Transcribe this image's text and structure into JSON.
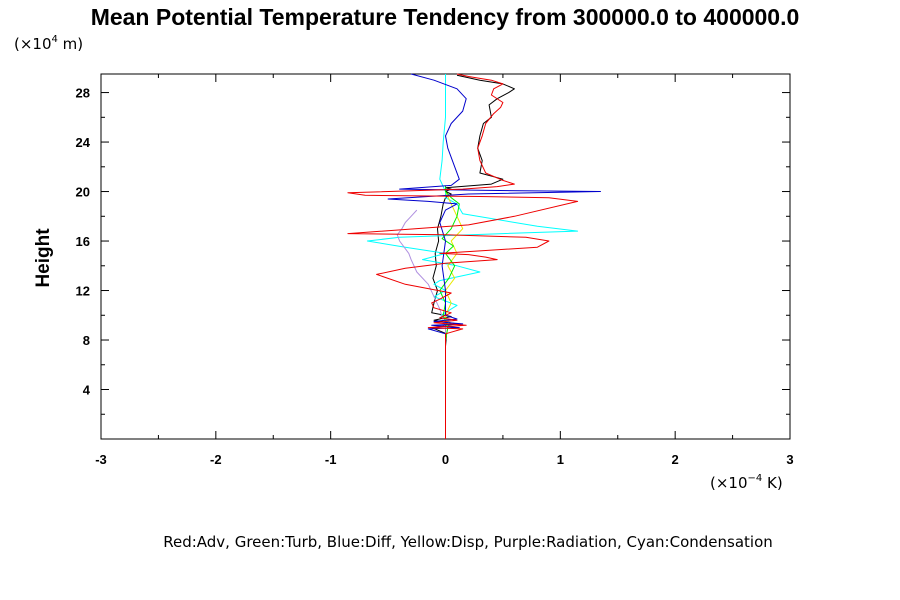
{
  "chart_data": {
    "type": "line",
    "title": "Mean Potential Temperature Tendency from 300000.0 to 400000.0",
    "ylabel": "Height",
    "y_unit": {
      "prefix": "(×10",
      "exp": "4",
      "suffix": " m)"
    },
    "x_unit": {
      "prefix": "(×10",
      "exp": "−4",
      "suffix": " K)"
    },
    "xlim": [
      -3,
      3
    ],
    "ylim": [
      0,
      29.5
    ],
    "x_ticks": [
      "-3",
      "-2",
      "-1",
      "0",
      "1",
      "2",
      "3"
    ],
    "y_ticks": [
      "4",
      "8",
      "12",
      "16",
      "20",
      "24",
      "28"
    ],
    "caption": "Red:Adv, Green:Turb, Blue:Diff, Yellow:Disp, Purple:Radiation, Cyan:Condensation",
    "grid": false,
    "series": [
      {
        "key": "total",
        "color": "#000000",
        "x": [
          0,
          0,
          0,
          0.01,
          -0.12,
          0.1,
          -0.1,
          0.05,
          -0.12,
          -0.1,
          -0.07,
          -0.11,
          -0.08,
          -0.09,
          -0.06,
          -0.07,
          -0.04,
          -0.02,
          0.0,
          0.05,
          0.0,
          0.05,
          0.0,
          0.4,
          0.5,
          0.3,
          0.32,
          0.28,
          0.3,
          0.33,
          0.4,
          0.38,
          0.45,
          0.55,
          0.6,
          0.5,
          0.3,
          0.2,
          0.1
        ],
        "y": [
          0,
          6,
          7.5,
          8.5,
          9.0,
          9.3,
          9.6,
          9.9,
          10.2,
          11.0,
          12.0,
          13.0,
          14.0,
          15.0,
          16.0,
          17.0,
          18.0,
          19.0,
          19.5,
          19.8,
          20.0,
          20.2,
          20.3,
          20.6,
          21.0,
          21.5,
          22.5,
          23.5,
          24.5,
          25.5,
          26.0,
          27.0,
          27.5,
          28.0,
          28.3,
          28.7,
          29.0,
          29.2,
          29.4
        ]
      },
      {
        "key": "condensation",
        "color": "#00ffff",
        "x": [
          0,
          0,
          0,
          0,
          0.03,
          -0.04,
          0.1,
          -0.1,
          0.0,
          -0.1,
          -0.05,
          0.3,
          0.1,
          -0.2,
          0.0,
          -0.35,
          -0.68,
          -0.4,
          0.5,
          1.15,
          0.8,
          0.15,
          0.1,
          0.0,
          0.0,
          -0.05,
          -0.03,
          -0.02,
          0.0,
          0.0
        ],
        "y": [
          0,
          7.5,
          8.5,
          9.0,
          9.5,
          10.0,
          10.8,
          11.5,
          12.0,
          12.5,
          12.8,
          13.5,
          14.0,
          14.5,
          15.0,
          15.5,
          16.0,
          16.3,
          16.6,
          16.8,
          17.2,
          18.2,
          19.0,
          19.5,
          20.0,
          21.0,
          22.5,
          24.0,
          26.0,
          29.5
        ]
      },
      {
        "key": "radiation",
        "color": "#b090e0",
        "x": [
          0,
          0,
          0,
          -0.05,
          -0.1,
          -0.15,
          -0.25,
          -0.3,
          -0.32,
          -0.36,
          -0.4,
          -0.42,
          -0.38,
          -0.35,
          -0.3,
          -0.25
        ],
        "y": [
          0,
          7,
          9,
          10.5,
          11.5,
          12.5,
          13.5,
          14.5,
          15.0,
          15.5,
          16.0,
          16.5,
          17.0,
          17.5,
          18.0,
          18.5
        ]
      },
      {
        "key": "yellow_disp",
        "color": "#e8e800",
        "x": [
          0,
          0,
          0.02,
          0.0,
          0.05,
          0.0,
          0.08,
          0.02,
          0.1,
          0.05,
          0.15,
          0.1,
          0.05,
          0.0
        ],
        "y": [
          0,
          8,
          9,
          10,
          11,
          12,
          13,
          14,
          15,
          16,
          17,
          18,
          19,
          20
        ]
      },
      {
        "key": "green_turb",
        "color": "#00ee00",
        "x": [
          0,
          0,
          0.02,
          -0.02,
          0.0,
          -0.05,
          0.03,
          0.08,
          0.0,
          0.07,
          -0.03,
          0.05,
          0.1,
          0.12,
          0.05,
          0.0,
          0.0
        ],
        "y": [
          0,
          8,
          9,
          10,
          11,
          12,
          13,
          14,
          15,
          15.6,
          16.2,
          17,
          18,
          19,
          19.5,
          20,
          20.5
        ]
      },
      {
        "key": "diff",
        "color": "#0000cc",
        "x": [
          0,
          0,
          0,
          -0.15,
          0.12,
          -0.12,
          0.15,
          -0.1,
          0.1,
          0.0,
          0.0,
          -0.03,
          0.0,
          -0.05,
          0.0,
          0.1,
          -0.15,
          -0.5,
          0.2,
          1.35,
          0.3,
          -0.4,
          0.05,
          0.12,
          0.08,
          0.02,
          0.0,
          0.05,
          0.15,
          0.18,
          0.1,
          -0.1,
          -0.3
        ],
        "y": [
          0,
          7.5,
          8.5,
          8.9,
          9.0,
          9.2,
          9.3,
          9.5,
          9.7,
          10.0,
          12.0,
          14.0,
          16.0,
          17.5,
          18.5,
          19.0,
          19.2,
          19.4,
          19.8,
          20.0,
          20.1,
          20.2,
          20.5,
          21.0,
          22.0,
          23.5,
          24.5,
          25.5,
          26.5,
          27.5,
          28.3,
          29.0,
          29.5
        ]
      },
      {
        "key": "adv",
        "color": "#ee0000",
        "x": [
          0,
          0,
          0,
          0.15,
          -0.15,
          0.18,
          -0.1,
          0.1,
          -0.05,
          0.05,
          -0.1,
          -0.12,
          -0.05,
          0.05,
          -0.35,
          -0.6,
          -0.35,
          0.0,
          0.45,
          0.35,
          0.2,
          -0.05,
          0.3,
          0.8,
          0.9,
          0.7,
          0.0,
          -0.85,
          0.2,
          0.6,
          1.15,
          0.9,
          0.3,
          -0.7,
          -0.85,
          0.15,
          0.45,
          0.6,
          0.5,
          0.35,
          0.3,
          0.28,
          0.32,
          0.35,
          0.42,
          0.48,
          0.5,
          0.4,
          0.42,
          0.5,
          0.4,
          0.2,
          0.1
        ],
        "y": [
          0,
          7.5,
          8.5,
          8.9,
          9.0,
          9.2,
          9.4,
          9.6,
          9.8,
          10.2,
          10.6,
          11.0,
          11.3,
          11.8,
          12.5,
          13.3,
          13.8,
          14.2,
          14.5,
          14.7,
          14.9,
          15.0,
          15.2,
          15.5,
          16.0,
          16.3,
          16.5,
          16.6,
          17.3,
          18.0,
          19.2,
          19.5,
          19.6,
          19.7,
          19.9,
          20.2,
          20.4,
          20.6,
          20.9,
          21.5,
          22.5,
          23.5,
          24.5,
          25.5,
          26.3,
          26.8,
          27.2,
          27.8,
          28.3,
          28.7,
          29.0,
          29.3,
          29.5
        ]
      }
    ]
  }
}
